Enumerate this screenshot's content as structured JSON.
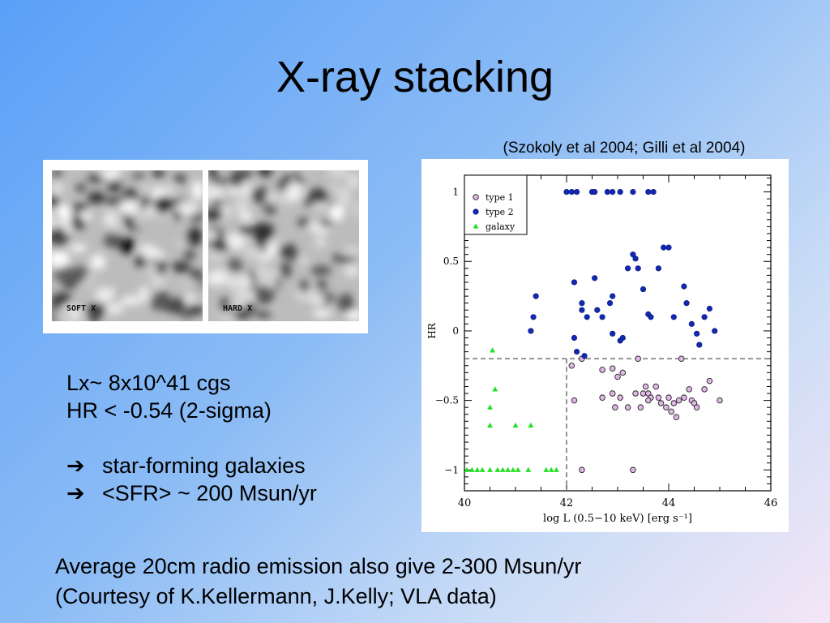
{
  "slide": {
    "title": "X-ray stacking",
    "citation": "(Szokoly et al 2004; Gilli et al 2004)",
    "images": [
      {
        "label": "SOFT X"
      },
      {
        "label": "HARD X"
      }
    ],
    "stats": [
      "Lx~ 8x10^41 cgs",
      "HR < -0.54 (2-sigma)"
    ],
    "bullets": [
      {
        "arrow": "➔",
        "text": "star-forming galaxies"
      },
      {
        "arrow": "➔",
        "text": "<SFR> ~ 200 Msun/yr"
      }
    ],
    "footer": [
      "Average 20cm radio emission also give 2-300 Msun/yr",
      "(Courtesy of K.Kellermann, J.Kelly; VLA data)"
    ]
  },
  "chart_data": {
    "type": "scatter",
    "xlabel": "log L (0.5−10 keV) [erg s⁻¹]",
    "ylabel": "HR",
    "xlim": [
      40,
      46
    ],
    "ylim": [
      -1.15,
      1.12
    ],
    "xticks": [
      40,
      42,
      44,
      46
    ],
    "yticks": [
      {
        "value": 1,
        "label": "1"
      },
      {
        "value": 0.5,
        "label": "0.5"
      },
      {
        "value": 0,
        "label": "0"
      },
      {
        "value": -0.5,
        "label": "−0.5"
      },
      {
        "value": -1,
        "label": "−1"
      }
    ],
    "legend": "top-left",
    "reference_lines": {
      "x": 42,
      "y": -0.2
    },
    "series": [
      {
        "name": "type 1",
        "marker": "open-circle",
        "color": "#e2b6e8",
        "points": [
          [
            42.1,
            -0.25
          ],
          [
            42.15,
            -0.5
          ],
          [
            42.3,
            -0.2
          ],
          [
            42.3,
            -1.0
          ],
          [
            42.7,
            -0.48
          ],
          [
            42.7,
            -0.28
          ],
          [
            42.9,
            -0.45
          ],
          [
            42.9,
            -0.27
          ],
          [
            42.95,
            -0.55
          ],
          [
            43.0,
            -0.33
          ],
          [
            43.05,
            -0.48
          ],
          [
            43.1,
            -0.3
          ],
          [
            43.2,
            -0.55
          ],
          [
            43.3,
            -1.0
          ],
          [
            43.35,
            -0.45
          ],
          [
            43.4,
            -0.2
          ],
          [
            43.45,
            -0.55
          ],
          [
            43.5,
            -0.45
          ],
          [
            43.55,
            -0.4
          ],
          [
            43.6,
            -0.45
          ],
          [
            43.65,
            -0.48
          ],
          [
            43.75,
            -0.4
          ],
          [
            43.8,
            -0.48
          ],
          [
            43.85,
            -0.52
          ],
          [
            43.95,
            -0.55
          ],
          [
            44.05,
            -0.58
          ],
          [
            44.1,
            -0.52
          ],
          [
            44.15,
            -0.62
          ],
          [
            44.2,
            -0.5
          ],
          [
            44.25,
            -0.2
          ],
          [
            44.3,
            -0.48
          ],
          [
            44.4,
            -0.42
          ],
          [
            44.45,
            -0.5
          ],
          [
            44.5,
            -0.52
          ],
          [
            44.55,
            -0.55
          ],
          [
            44.7,
            -0.42
          ],
          [
            44.8,
            -0.36
          ],
          [
            45.0,
            -0.5
          ],
          [
            43.6,
            -0.5
          ],
          [
            44.0,
            -0.48
          ]
        ]
      },
      {
        "name": "type 2",
        "marker": "filled-circle",
        "color": "#1228b4",
        "points": [
          [
            42.0,
            1.0
          ],
          [
            42.1,
            1.0
          ],
          [
            42.2,
            1.0
          ],
          [
            42.5,
            1.0
          ],
          [
            42.55,
            1.0
          ],
          [
            42.8,
            1.0
          ],
          [
            42.9,
            1.0
          ],
          [
            43.05,
            1.0
          ],
          [
            43.3,
            1.0
          ],
          [
            43.6,
            1.0
          ],
          [
            43.7,
            1.0
          ],
          [
            41.3,
            0.0
          ],
          [
            41.35,
            0.1
          ],
          [
            41.4,
            0.25
          ],
          [
            42.15,
            0.35
          ],
          [
            42.3,
            0.2
          ],
          [
            42.3,
            0.15
          ],
          [
            42.4,
            0.1
          ],
          [
            42.55,
            0.38
          ],
          [
            42.6,
            0.15
          ],
          [
            42.7,
            0.1
          ],
          [
            42.85,
            0.2
          ],
          [
            42.9,
            0.25
          ],
          [
            42.9,
            -0.02
          ],
          [
            43.05,
            -0.07
          ],
          [
            43.1,
            -0.05
          ],
          [
            43.2,
            0.45
          ],
          [
            43.3,
            0.55
          ],
          [
            43.35,
            0.52
          ],
          [
            43.4,
            0.45
          ],
          [
            43.5,
            0.3
          ],
          [
            43.6,
            0.12
          ],
          [
            43.65,
            0.1
          ],
          [
            43.8,
            0.45
          ],
          [
            43.9,
            0.6
          ],
          [
            44.0,
            0.6
          ],
          [
            44.1,
            0.1
          ],
          [
            44.3,
            0.32
          ],
          [
            44.35,
            0.2
          ],
          [
            44.45,
            0.05
          ],
          [
            44.55,
            -0.02
          ],
          [
            44.6,
            -0.1
          ],
          [
            44.7,
            0.1
          ],
          [
            44.8,
            0.16
          ],
          [
            44.9,
            0.0
          ],
          [
            42.15,
            -0.05
          ],
          [
            42.2,
            -0.15
          ],
          [
            42.35,
            -0.18
          ]
        ]
      },
      {
        "name": "galaxy",
        "marker": "filled-triangle",
        "color": "#22e022",
        "points": [
          [
            40.05,
            -1.0
          ],
          [
            40.15,
            -1.0
          ],
          [
            40.25,
            -1.0
          ],
          [
            40.35,
            -1.0
          ],
          [
            40.5,
            -1.0
          ],
          [
            40.65,
            -1.0
          ],
          [
            40.75,
            -1.0
          ],
          [
            40.85,
            -1.0
          ],
          [
            40.95,
            -1.0
          ],
          [
            41.05,
            -1.0
          ],
          [
            41.25,
            -1.0
          ],
          [
            41.6,
            -1.0
          ],
          [
            41.7,
            -1.0
          ],
          [
            41.8,
            -1.0
          ],
          [
            40.6,
            -0.42
          ],
          [
            40.5,
            -0.55
          ],
          [
            40.5,
            -0.68
          ],
          [
            40.55,
            -0.14
          ],
          [
            41.0,
            -0.68
          ],
          [
            41.3,
            -0.68
          ]
        ]
      }
    ]
  }
}
